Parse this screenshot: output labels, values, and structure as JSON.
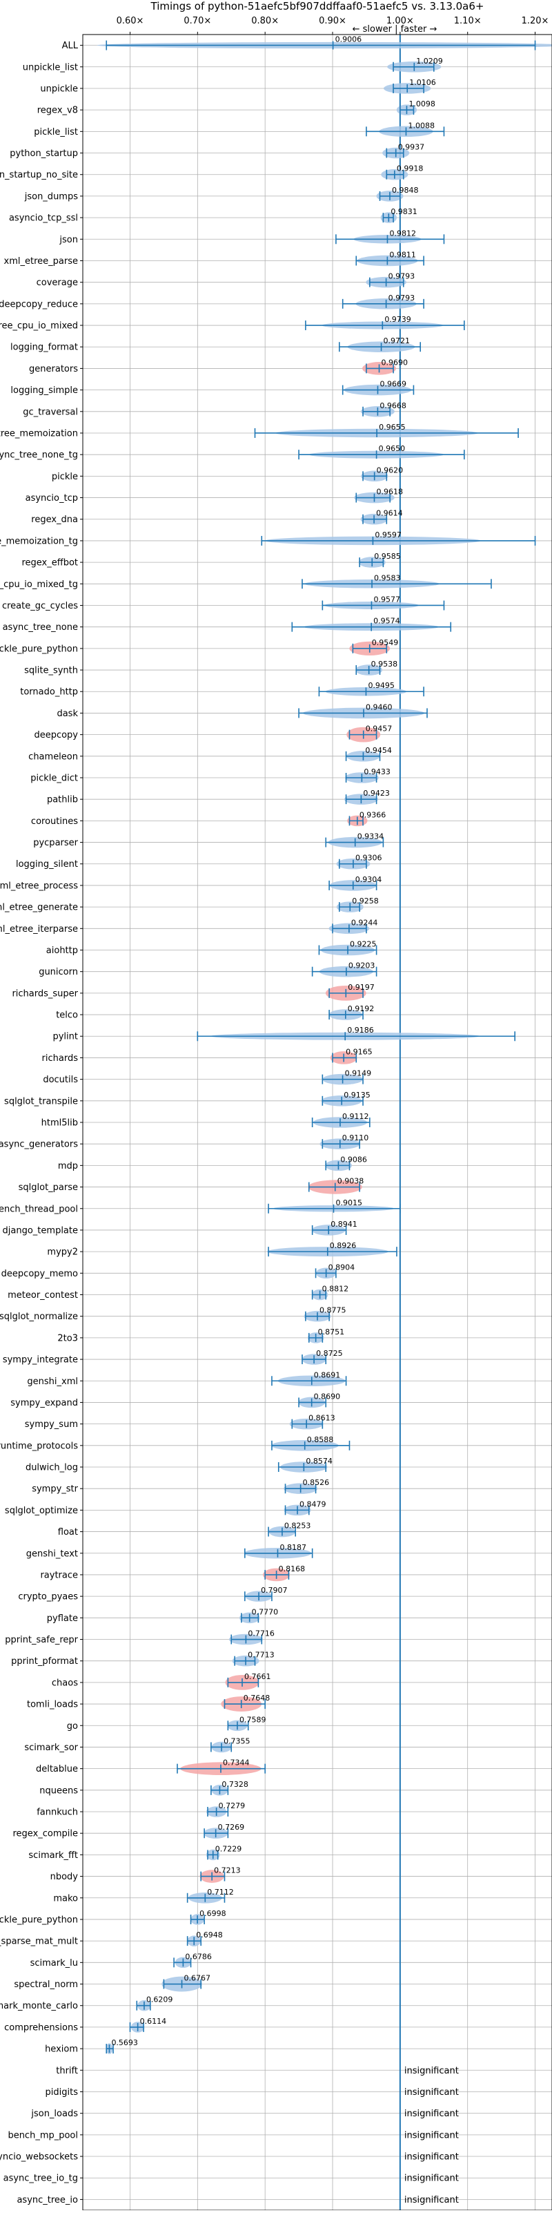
{
  "chart_data": {
    "type": "violin",
    "title": "Timings of python-51aefc5bf907ddffaaf0-51aefc5 vs. 3.13.0a6+",
    "direction_label": "← slower | faster →",
    "x_ticks": [
      "0.60×",
      "0.70×",
      "0.80×",
      "0.90×",
      "1.00×",
      "1.10×",
      "1.20×"
    ],
    "x_tick_values": [
      0.6,
      0.7,
      0.8,
      0.9,
      1.0,
      1.1,
      1.2
    ],
    "xlim": [
      0.53,
      1.225
    ],
    "reference_line": 1.0,
    "grid": true,
    "insignificant_label": "insignificant",
    "colors": {
      "normal": "#a7c7e7",
      "highlight": "#f4a6a6",
      "line": "#1f77b4",
      "grid": "#b0b0b0"
    },
    "benchmarks": [
      {
        "name": "ALL",
        "mean": 0.9006,
        "lo": 0.565,
        "hi": 1.2,
        "spread": 0.35,
        "width": 0.3,
        "hl": false
      },
      {
        "name": "unpickle_list",
        "mean": 1.0209,
        "lo": 0.99,
        "hi": 1.05,
        "spread": 0.04,
        "width": 0.5,
        "hl": false
      },
      {
        "name": "unpickle",
        "mean": 1.0106,
        "lo": 0.99,
        "hi": 1.035,
        "spread": 0.035,
        "width": 0.5,
        "hl": false
      },
      {
        "name": "regex_v8",
        "mean": 1.0098,
        "lo": 1.0,
        "hi": 1.02,
        "spread": 0.015,
        "width": 0.5,
        "hl": false
      },
      {
        "name": "pickle_list",
        "mean": 1.0088,
        "lo": 0.95,
        "hi": 1.065,
        "spread": 0.04,
        "width": 0.5,
        "hl": false
      },
      {
        "name": "python_startup",
        "mean": 0.9937,
        "lo": 0.98,
        "hi": 1.005,
        "spread": 0.02,
        "width": 0.5,
        "hl": false
      },
      {
        "name": "python_startup_no_site",
        "mean": 0.9918,
        "lo": 0.98,
        "hi": 1.005,
        "spread": 0.02,
        "width": 0.5,
        "hl": false
      },
      {
        "name": "json_dumps",
        "mean": 0.9848,
        "lo": 0.97,
        "hi": 1.0,
        "spread": 0.02,
        "width": 0.5,
        "hl": false
      },
      {
        "name": "asyncio_tcp_ssl",
        "mean": 0.9831,
        "lo": 0.975,
        "hi": 0.99,
        "spread": 0.012,
        "width": 0.5,
        "hl": false
      },
      {
        "name": "json",
        "mean": 0.9812,
        "lo": 0.905,
        "hi": 1.065,
        "spread": 0.05,
        "width": 0.4,
        "hl": false
      },
      {
        "name": "xml_etree_parse",
        "mean": 0.9811,
        "lo": 0.935,
        "hi": 1.035,
        "spread": 0.045,
        "width": 0.5,
        "hl": false
      },
      {
        "name": "coverage",
        "mean": 0.9793,
        "lo": 0.955,
        "hi": 1.005,
        "spread": 0.03,
        "width": 0.5,
        "hl": false
      },
      {
        "name": "deepcopy_reduce",
        "mean": 0.9793,
        "lo": 0.915,
        "hi": 1.035,
        "spread": 0.045,
        "width": 0.5,
        "hl": false
      },
      {
        "name": "async_tree_cpu_io_mixed",
        "mean": 0.9739,
        "lo": 0.86,
        "hi": 1.095,
        "spread": 0.09,
        "width": 0.35,
        "hl": false
      },
      {
        "name": "logging_format",
        "mean": 0.9721,
        "lo": 0.91,
        "hi": 1.03,
        "spread": 0.05,
        "width": 0.5,
        "hl": false
      },
      {
        "name": "generators",
        "mean": 0.969,
        "lo": 0.95,
        "hi": 0.99,
        "spread": 0.025,
        "width": 0.6,
        "hl": true
      },
      {
        "name": "logging_simple",
        "mean": 0.9669,
        "lo": 0.915,
        "hi": 1.02,
        "spread": 0.05,
        "width": 0.5,
        "hl": false
      },
      {
        "name": "gc_traversal",
        "mean": 0.9668,
        "lo": 0.945,
        "hi": 0.985,
        "spread": 0.025,
        "width": 0.5,
        "hl": false
      },
      {
        "name": "async_tree_memoization",
        "mean": 0.9655,
        "lo": 0.785,
        "hi": 1.175,
        "spread": 0.15,
        "width": 0.4,
        "hl": false
      },
      {
        "name": "async_tree_none_tg",
        "mean": 0.965,
        "lo": 0.85,
        "hi": 1.095,
        "spread": 0.1,
        "width": 0.35,
        "hl": false
      },
      {
        "name": "pickle",
        "mean": 0.962,
        "lo": 0.945,
        "hi": 0.98,
        "spread": 0.02,
        "width": 0.5,
        "hl": false
      },
      {
        "name": "asyncio_tcp",
        "mean": 0.9618,
        "lo": 0.935,
        "hi": 0.985,
        "spread": 0.03,
        "width": 0.5,
        "hl": false
      },
      {
        "name": "regex_dna",
        "mean": 0.9614,
        "lo": 0.945,
        "hi": 0.98,
        "spread": 0.02,
        "width": 0.5,
        "hl": false
      },
      {
        "name": "async_tree_memoization_tg",
        "mean": 0.9597,
        "lo": 0.795,
        "hi": 1.2,
        "spread": 0.16,
        "width": 0.4,
        "hl": false
      },
      {
        "name": "regex_effbot",
        "mean": 0.9585,
        "lo": 0.94,
        "hi": 0.975,
        "spread": 0.02,
        "width": 0.5,
        "hl": false
      },
      {
        "name": "async_tree_cpu_io_mixed_tg",
        "mean": 0.9583,
        "lo": 0.855,
        "hi": 1.135,
        "spread": 0.1,
        "width": 0.4,
        "hl": false
      },
      {
        "name": "create_gc_cycles",
        "mean": 0.9577,
        "lo": 0.885,
        "hi": 1.065,
        "spread": 0.07,
        "width": 0.35,
        "hl": false
      },
      {
        "name": "async_tree_none",
        "mean": 0.9574,
        "lo": 0.84,
        "hi": 1.075,
        "spread": 0.1,
        "width": 0.35,
        "hl": false
      },
      {
        "name": "pickle_pure_python",
        "mean": 0.9549,
        "lo": 0.93,
        "hi": 0.98,
        "spread": 0.03,
        "width": 0.65,
        "hl": true
      },
      {
        "name": "sqlite_synth",
        "mean": 0.9538,
        "lo": 0.935,
        "hi": 0.97,
        "spread": 0.02,
        "width": 0.5,
        "hl": false
      },
      {
        "name": "tornado_http",
        "mean": 0.9495,
        "lo": 0.88,
        "hi": 1.035,
        "spread": 0.06,
        "width": 0.4,
        "hl": false
      },
      {
        "name": "dask",
        "mean": 0.946,
        "lo": 0.85,
        "hi": 1.04,
        "spread": 0.09,
        "width": 0.5,
        "hl": false
      },
      {
        "name": "deepcopy",
        "mean": 0.9457,
        "lo": 0.925,
        "hi": 0.965,
        "spread": 0.025,
        "width": 0.7,
        "hl": true
      },
      {
        "name": "chameleon",
        "mean": 0.9454,
        "lo": 0.92,
        "hi": 0.97,
        "spread": 0.025,
        "width": 0.5,
        "hl": false
      },
      {
        "name": "pickle_dict",
        "mean": 0.9433,
        "lo": 0.92,
        "hi": 0.965,
        "spread": 0.025,
        "width": 0.5,
        "hl": false
      },
      {
        "name": "pathlib",
        "mean": 0.9423,
        "lo": 0.92,
        "hi": 0.965,
        "spread": 0.025,
        "width": 0.5,
        "hl": false
      },
      {
        "name": "coroutines",
        "mean": 0.9366,
        "lo": 0.925,
        "hi": 0.945,
        "spread": 0.015,
        "width": 0.5,
        "hl": true
      },
      {
        "name": "pycparser",
        "mean": 0.9334,
        "lo": 0.89,
        "hi": 0.975,
        "spread": 0.04,
        "width": 0.5,
        "hl": false
      },
      {
        "name": "logging_silent",
        "mean": 0.9306,
        "lo": 0.91,
        "hi": 0.95,
        "spread": 0.025,
        "width": 0.5,
        "hl": false
      },
      {
        "name": "xml_etree_process",
        "mean": 0.9304,
        "lo": 0.895,
        "hi": 0.965,
        "spread": 0.035,
        "width": 0.5,
        "hl": false
      },
      {
        "name": "xml_etree_generate",
        "mean": 0.9258,
        "lo": 0.91,
        "hi": 0.94,
        "spread": 0.02,
        "width": 0.5,
        "hl": false
      },
      {
        "name": "xml_etree_iterparse",
        "mean": 0.9244,
        "lo": 0.9,
        "hi": 0.95,
        "spread": 0.03,
        "width": 0.5,
        "hl": false
      },
      {
        "name": "aiohttp",
        "mean": 0.9225,
        "lo": 0.88,
        "hi": 0.965,
        "spread": 0.04,
        "width": 0.5,
        "hl": false
      },
      {
        "name": "gunicorn",
        "mean": 0.9203,
        "lo": 0.87,
        "hi": 0.965,
        "spread": 0.04,
        "width": 0.5,
        "hl": false
      },
      {
        "name": "richards_super",
        "mean": 0.9197,
        "lo": 0.895,
        "hi": 0.945,
        "spread": 0.03,
        "width": 0.7,
        "hl": true
      },
      {
        "name": "telco",
        "mean": 0.9192,
        "lo": 0.895,
        "hi": 0.945,
        "spread": 0.025,
        "width": 0.5,
        "hl": false
      },
      {
        "name": "pylint",
        "mean": 0.9186,
        "lo": 0.7,
        "hi": 1.17,
        "spread": 0.2,
        "width": 0.35,
        "hl": false
      },
      {
        "name": "richards",
        "mean": 0.9165,
        "lo": 0.9,
        "hi": 0.935,
        "spread": 0.02,
        "width": 0.6,
        "hl": true
      },
      {
        "name": "docutils",
        "mean": 0.9149,
        "lo": 0.885,
        "hi": 0.945,
        "spread": 0.03,
        "width": 0.5,
        "hl": false
      },
      {
        "name": "sqlglot_transpile",
        "mean": 0.9135,
        "lo": 0.885,
        "hi": 0.945,
        "spread": 0.03,
        "width": 0.5,
        "hl": false
      },
      {
        "name": "html5lib",
        "mean": 0.9112,
        "lo": 0.87,
        "hi": 0.955,
        "spread": 0.04,
        "width": 0.5,
        "hl": false
      },
      {
        "name": "async_generators",
        "mean": 0.911,
        "lo": 0.885,
        "hi": 0.94,
        "spread": 0.03,
        "width": 0.5,
        "hl": false
      },
      {
        "name": "mdp",
        "mean": 0.9086,
        "lo": 0.89,
        "hi": 0.925,
        "spread": 0.02,
        "width": 0.5,
        "hl": false
      },
      {
        "name": "sqlglot_parse",
        "mean": 0.9038,
        "lo": 0.865,
        "hi": 0.94,
        "spread": 0.04,
        "width": 0.65,
        "hl": true
      },
      {
        "name": "bench_thread_pool",
        "mean": 0.9015,
        "lo": 0.805,
        "hi": 1.0,
        "spread": 0.09,
        "width": 0.3,
        "hl": false
      },
      {
        "name": "django_template",
        "mean": 0.8941,
        "lo": 0.87,
        "hi": 0.92,
        "spread": 0.025,
        "width": 0.5,
        "hl": false
      },
      {
        "name": "mypy2",
        "mean": 0.8926,
        "lo": 0.805,
        "hi": 0.995,
        "spread": 0.09,
        "width": 0.45,
        "hl": false
      },
      {
        "name": "deepcopy_memo",
        "mean": 0.8904,
        "lo": 0.875,
        "hi": 0.905,
        "spread": 0.015,
        "width": 0.5,
        "hl": false
      },
      {
        "name": "meteor_contest",
        "mean": 0.8812,
        "lo": 0.87,
        "hi": 0.89,
        "spread": 0.012,
        "width": 0.5,
        "hl": false
      },
      {
        "name": "sqlglot_normalize",
        "mean": 0.8775,
        "lo": 0.86,
        "hi": 0.895,
        "spread": 0.02,
        "width": 0.5,
        "hl": false
      },
      {
        "name": "2to3",
        "mean": 0.8751,
        "lo": 0.865,
        "hi": 0.885,
        "spread": 0.012,
        "width": 0.5,
        "hl": false
      },
      {
        "name": "sympy_integrate",
        "mean": 0.8725,
        "lo": 0.855,
        "hi": 0.89,
        "spread": 0.018,
        "width": 0.5,
        "hl": false
      },
      {
        "name": "genshi_xml",
        "mean": 0.8691,
        "lo": 0.81,
        "hi": 0.92,
        "spread": 0.05,
        "width": 0.5,
        "hl": false
      },
      {
        "name": "sympy_expand",
        "mean": 0.869,
        "lo": 0.85,
        "hi": 0.89,
        "spread": 0.02,
        "width": 0.5,
        "hl": false
      },
      {
        "name": "sympy_sum",
        "mean": 0.8613,
        "lo": 0.84,
        "hi": 0.885,
        "spread": 0.025,
        "width": 0.5,
        "hl": false
      },
      {
        "name": "typing_runtime_protocols",
        "mean": 0.8588,
        "lo": 0.81,
        "hi": 0.925,
        "spread": 0.05,
        "width": 0.5,
        "hl": false
      },
      {
        "name": "dulwich_log",
        "mean": 0.8574,
        "lo": 0.82,
        "hi": 0.89,
        "spread": 0.035,
        "width": 0.5,
        "hl": false
      },
      {
        "name": "sympy_str",
        "mean": 0.8526,
        "lo": 0.83,
        "hi": 0.875,
        "spread": 0.025,
        "width": 0.5,
        "hl": false
      },
      {
        "name": "sqlglot_optimize",
        "mean": 0.8479,
        "lo": 0.83,
        "hi": 0.865,
        "spread": 0.02,
        "width": 0.5,
        "hl": false
      },
      {
        "name": "float",
        "mean": 0.8253,
        "lo": 0.805,
        "hi": 0.845,
        "spread": 0.02,
        "width": 0.5,
        "hl": false
      },
      {
        "name": "genshi_text",
        "mean": 0.8187,
        "lo": 0.77,
        "hi": 0.87,
        "spread": 0.05,
        "width": 0.5,
        "hl": false
      },
      {
        "name": "raytrace",
        "mean": 0.8168,
        "lo": 0.8,
        "hi": 0.835,
        "spread": 0.02,
        "width": 0.6,
        "hl": true
      },
      {
        "name": "crypto_pyaes",
        "mean": 0.7907,
        "lo": 0.77,
        "hi": 0.81,
        "spread": 0.02,
        "width": 0.5,
        "hl": false
      },
      {
        "name": "pyflate",
        "mean": 0.777,
        "lo": 0.765,
        "hi": 0.79,
        "spread": 0.015,
        "width": 0.5,
        "hl": false
      },
      {
        "name": "pprint_safe_repr",
        "mean": 0.7716,
        "lo": 0.75,
        "hi": 0.795,
        "spread": 0.025,
        "width": 0.5,
        "hl": false
      },
      {
        "name": "pprint_pformat",
        "mean": 0.7713,
        "lo": 0.755,
        "hi": 0.785,
        "spread": 0.02,
        "width": 0.5,
        "hl": false
      },
      {
        "name": "chaos",
        "mean": 0.7661,
        "lo": 0.745,
        "hi": 0.79,
        "spread": 0.025,
        "width": 0.7,
        "hl": true
      },
      {
        "name": "tomli_loads",
        "mean": 0.7648,
        "lo": 0.74,
        "hi": 0.8,
        "spread": 0.03,
        "width": 0.7,
        "hl": true
      },
      {
        "name": "go",
        "mean": 0.7589,
        "lo": 0.745,
        "hi": 0.775,
        "spread": 0.015,
        "width": 0.5,
        "hl": false
      },
      {
        "name": "scimark_sor",
        "mean": 0.7355,
        "lo": 0.72,
        "hi": 0.75,
        "spread": 0.015,
        "width": 0.5,
        "hl": false
      },
      {
        "name": "deltablue",
        "mean": 0.7344,
        "lo": 0.67,
        "hi": 0.8,
        "spread": 0.06,
        "width": 0.6,
        "hl": true
      },
      {
        "name": "nqueens",
        "mean": 0.7328,
        "lo": 0.72,
        "hi": 0.745,
        "spread": 0.012,
        "width": 0.5,
        "hl": false
      },
      {
        "name": "fannkuch",
        "mean": 0.7279,
        "lo": 0.715,
        "hi": 0.745,
        "spread": 0.015,
        "width": 0.5,
        "hl": false
      },
      {
        "name": "regex_compile",
        "mean": 0.7269,
        "lo": 0.71,
        "hi": 0.745,
        "spread": 0.018,
        "width": 0.5,
        "hl": false
      },
      {
        "name": "scimark_fft",
        "mean": 0.7229,
        "lo": 0.715,
        "hi": 0.73,
        "spread": 0.01,
        "width": 0.5,
        "hl": false
      },
      {
        "name": "nbody",
        "mean": 0.7213,
        "lo": 0.705,
        "hi": 0.74,
        "spread": 0.018,
        "width": 0.6,
        "hl": true
      },
      {
        "name": "mako",
        "mean": 0.7112,
        "lo": 0.685,
        "hi": 0.74,
        "spread": 0.025,
        "width": 0.5,
        "hl": false
      },
      {
        "name": "unpickle_pure_python",
        "mean": 0.6998,
        "lo": 0.69,
        "hi": 0.71,
        "spread": 0.01,
        "width": 0.5,
        "hl": false
      },
      {
        "name": "scimark_sparse_mat_mult",
        "mean": 0.6948,
        "lo": 0.685,
        "hi": 0.705,
        "spread": 0.01,
        "width": 0.5,
        "hl": false
      },
      {
        "name": "scimark_lu",
        "mean": 0.6786,
        "lo": 0.665,
        "hi": 0.69,
        "spread": 0.012,
        "width": 0.5,
        "hl": false
      },
      {
        "name": "spectral_norm",
        "mean": 0.6767,
        "lo": 0.65,
        "hi": 0.705,
        "spread": 0.03,
        "width": 0.7,
        "hl": false
      },
      {
        "name": "scimark_monte_carlo",
        "mean": 0.6209,
        "lo": 0.61,
        "hi": 0.63,
        "spread": 0.01,
        "width": 0.5,
        "hl": false
      },
      {
        "name": "comprehensions",
        "mean": 0.6114,
        "lo": 0.6,
        "hi": 0.62,
        "spread": 0.01,
        "width": 0.5,
        "hl": false
      },
      {
        "name": "hexiom",
        "mean": 0.5693,
        "lo": 0.565,
        "hi": 0.575,
        "spread": 0.005,
        "width": 0.5,
        "hl": false
      },
      {
        "name": "thrift",
        "insignificant": true
      },
      {
        "name": "pidigits",
        "insignificant": true
      },
      {
        "name": "json_loads",
        "insignificant": true
      },
      {
        "name": "bench_mp_pool",
        "insignificant": true
      },
      {
        "name": "asyncio_websockets",
        "insignificant": true
      },
      {
        "name": "async_tree_io_tg",
        "insignificant": true
      },
      {
        "name": "async_tree_io",
        "insignificant": true
      }
    ]
  }
}
